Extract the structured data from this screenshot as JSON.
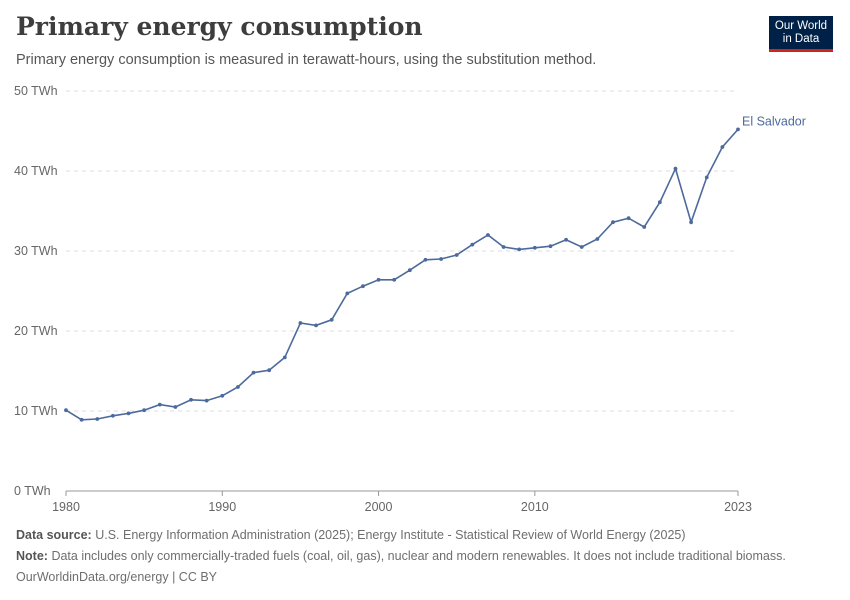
{
  "header": {
    "title": "Primary energy consumption",
    "subtitle": "Primary energy consumption is measured in terawatt-hours, using the substitution method.",
    "logo_line1": "Our World",
    "logo_line2": "in Data"
  },
  "footer": {
    "source_label": "Data source:",
    "source_text": "U.S. Energy Information Administration (2025); Energy Institute - Statistical Review of World Energy (2025)",
    "note_label": "Note:",
    "note_text": "Data includes only commercially-traded fuels (coal, oil, gas), nuclear and modern renewables. It does not include traditional biomass.",
    "credit": "OurWorldinData.org/energy | CC BY"
  },
  "colors": {
    "line": "#4c6a9c",
    "grid": "#dddddd"
  },
  "chart_data": {
    "type": "line",
    "x": [
      1980,
      1981,
      1982,
      1983,
      1984,
      1985,
      1986,
      1987,
      1988,
      1989,
      1990,
      1991,
      1992,
      1993,
      1994,
      1995,
      1996,
      1997,
      1998,
      1999,
      2000,
      2001,
      2002,
      2003,
      2004,
      2005,
      2006,
      2007,
      2008,
      2009,
      2010,
      2011,
      2012,
      2013,
      2014,
      2015,
      2016,
      2017,
      2018,
      2019,
      2020,
      2021,
      2022,
      2023
    ],
    "series": [
      {
        "name": "El Salvador",
        "values": [
          10.1,
          8.9,
          9.0,
          9.4,
          9.7,
          10.1,
          10.8,
          10.5,
          11.4,
          11.3,
          11.9,
          13.0,
          14.8,
          15.1,
          16.7,
          21.0,
          20.7,
          21.4,
          24.7,
          25.6,
          26.4,
          26.4,
          27.6,
          28.9,
          29.0,
          29.5,
          30.8,
          32.0,
          30.5,
          30.2,
          30.4,
          30.6,
          31.4,
          30.5,
          31.5,
          33.6,
          34.1,
          33.0,
          36.1,
          40.3,
          33.6,
          39.2,
          43.0,
          45.2
        ]
      }
    ],
    "x_ticks": [
      "1980",
      "1990",
      "2000",
      "2010",
      "2023"
    ],
    "y_ticks": [
      "0 TWh",
      "10 TWh",
      "20 TWh",
      "30 TWh",
      "40 TWh",
      "50 TWh"
    ],
    "ylim": [
      0,
      50
    ],
    "xlim": [
      1980,
      2023
    ],
    "grid": true,
    "legend": "inline-end"
  }
}
